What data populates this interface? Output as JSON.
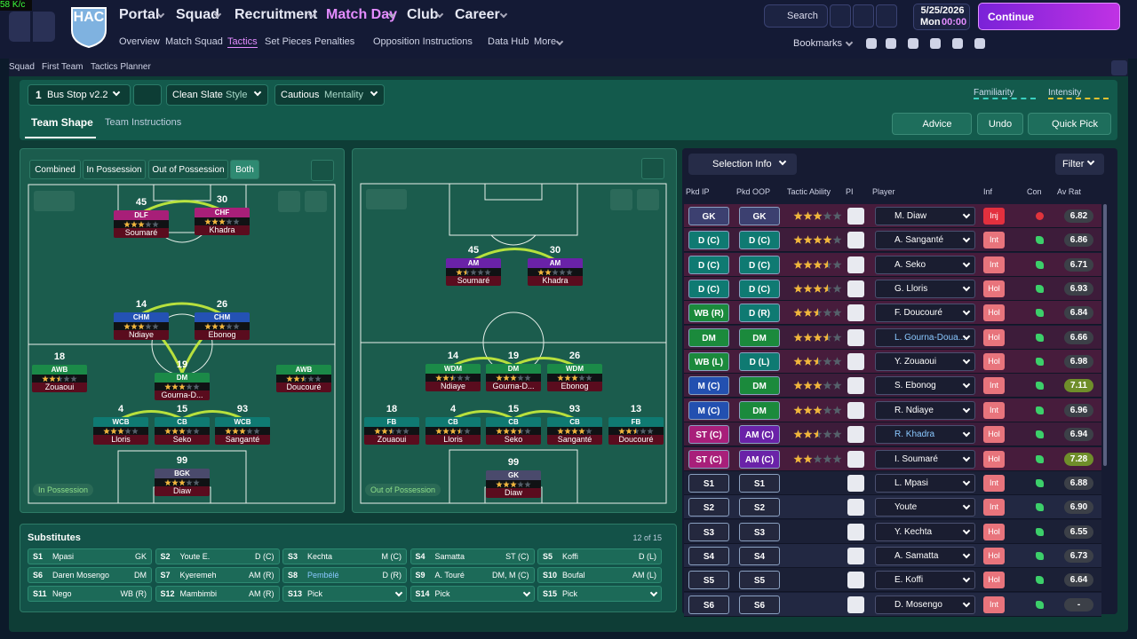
{
  "overlay": "58 K/c",
  "nav": {
    "crest": "HAC",
    "menus": [
      "Portal",
      "Squad",
      "Recruitment",
      "Match Day",
      "Club",
      "Career"
    ],
    "submenu": [
      "Overview",
      "Match Squad",
      "Tactics",
      "Set Pieces",
      "Penalties",
      "Opposition Instructions",
      "Data Hub",
      "More"
    ],
    "search": "Search",
    "date": "5/25/2026",
    "day": "Mon",
    "time": "00:00",
    "continue": "Continue",
    "bookmarks": "Bookmarks"
  },
  "breadcrumb": [
    "Squad",
    "First Team",
    "Tactics Planner"
  ],
  "tactic": {
    "slot": "1",
    "name": "Bus Stop v2.2",
    "style_value": "Clean Slate",
    "style_label": "Style",
    "mentality_value": "Cautious",
    "mentality_label": "Mentality",
    "familiarity": "Familiarity",
    "intensity": "Intensity"
  },
  "tabs": [
    "Team Shape",
    "Team Instructions"
  ],
  "actions": [
    "Advice",
    "Undo",
    "Quick Pick"
  ],
  "view_modes": [
    "Combined",
    "In Possession",
    "Out of Possession",
    "Both"
  ],
  "pitches": [
    {
      "label": "In Possession",
      "players": [
        {
          "number": 45,
          "role": "DLF",
          "name": "Soumaré",
          "rating": 3,
          "color": "#a81f78"
        },
        {
          "number": 30,
          "role": "CHF",
          "name": "Khadra",
          "rating": 3,
          "color": "#a81f78"
        },
        {
          "number": 14,
          "role": "CHM",
          "name": "Ndiaye",
          "rating": 3,
          "color": "#2452b4"
        },
        {
          "number": 26,
          "role": "CHM",
          "name": "Ebonog",
          "rating": 3,
          "color": "#2452b4"
        },
        {
          "number": 18,
          "role": "AWB",
          "name": "Zouaoui",
          "rating": 2.5,
          "color": "#1b8a48"
        },
        {
          "number": 19,
          "role": "DM",
          "name": "Gourna-D...",
          "rating": 3,
          "color": "#1b8a48"
        },
        {
          "role": "AWB",
          "name": "Doucouré",
          "rating": 2.5,
          "color": "#1b8a48"
        },
        {
          "number": 4,
          "role": "WCB",
          "name": "Lloris",
          "rating": 3,
          "color": "#0f7a72"
        },
        {
          "number": 15,
          "role": "CB",
          "name": "Seko",
          "rating": 3,
          "color": "#0f7a72"
        },
        {
          "number": 93,
          "role": "WCB",
          "name": "Sanganté",
          "rating": 3,
          "color": "#0f7a72"
        },
        {
          "number": 99,
          "role": "BGK",
          "name": "Diaw",
          "rating": 3,
          "color": "#4a4a6c"
        }
      ]
    },
    {
      "label": "Out of Possession",
      "players": [
        {
          "number": 45,
          "role": "AM",
          "name": "Soumaré",
          "rating": 1.5,
          "color": "#6a22a8"
        },
        {
          "number": 30,
          "role": "AM",
          "name": "Khadra",
          "rating": 2,
          "color": "#6a22a8"
        },
        {
          "number": 14,
          "role": "WDM",
          "name": "Ndiaye",
          "rating": 2.5,
          "color": "#1b8a48"
        },
        {
          "number": 19,
          "role": "DM",
          "name": "Gourna-D...",
          "rating": 3,
          "color": "#1b8a48"
        },
        {
          "number": 26,
          "role": "WDM",
          "name": "Ebonog",
          "rating": 3,
          "color": "#1b8a48"
        },
        {
          "number": 18,
          "role": "FB",
          "name": "Zouaoui",
          "rating": 2.5,
          "color": "#0f7a72"
        },
        {
          "number": 4,
          "role": "CB",
          "name": "Lloris",
          "rating": 3.5,
          "color": "#0f7a72"
        },
        {
          "number": 15,
          "role": "CB",
          "name": "Seko",
          "rating": 3.5,
          "color": "#0f7a72"
        },
        {
          "number": 93,
          "role": "CB",
          "name": "Sanganté",
          "rating": 4,
          "color": "#0f7a72"
        },
        {
          "number": 13,
          "role": "FB",
          "name": "Doucouré",
          "rating": 2.5,
          "color": "#0f7a72"
        },
        {
          "number": 99,
          "role": "GK",
          "name": "Diaw",
          "rating": 3,
          "color": "#4a4a6c"
        }
      ]
    }
  ],
  "substitutes": {
    "title": "Substitutes",
    "count": "12 of 15",
    "slots": [
      {
        "slot": "S1",
        "name": "Mpasi",
        "position": "GK"
      },
      {
        "slot": "S2",
        "name": "Youte E.",
        "position": "D (C)"
      },
      {
        "slot": "S3",
        "name": "Kechta",
        "position": "M (C)"
      },
      {
        "slot": "S4",
        "name": "Samatta",
        "position": "ST (C)"
      },
      {
        "slot": "S5",
        "name": "Koffi",
        "position": "D (L)"
      },
      {
        "slot": "S6",
        "name": "Daren Mosengo",
        "position": "DM"
      },
      {
        "slot": "S7",
        "name": "Kyeremeh",
        "position": "AM (R)"
      },
      {
        "slot": "S8",
        "name": "Pembélé",
        "position": "D (R)"
      },
      {
        "slot": "S9",
        "name": "A. Touré",
        "position": "DM, M (C)"
      },
      {
        "slot": "S10",
        "name": "Boufal",
        "position": "AM (L)"
      },
      {
        "slot": "S11",
        "name": "Nego",
        "position": "WB (R)"
      },
      {
        "slot": "S12",
        "name": "Mambimbi",
        "position": "AM (R)"
      },
      {
        "slot": "S13",
        "name": "Pick"
      },
      {
        "slot": "S14",
        "name": "Pick"
      },
      {
        "slot": "S15",
        "name": "Pick"
      }
    ]
  },
  "selection": {
    "menu": "Selection Info",
    "filter": "Filter",
    "headers": [
      "Pkd IP",
      "Pkd OOP",
      "Tactic Ability",
      "PI",
      "Player",
      "Inf",
      "Con",
      "Av Rat"
    ],
    "rows": [
      {
        "ip": "GK",
        "ip_color": "#3c4070",
        "oop": "GK",
        "oop_color": "#3c4070",
        "ability": 3,
        "player": "M. Diaw",
        "inf": "Inj",
        "inf_color": "#e3303e",
        "con_color": "#e0343c",
        "rating": "6.82"
      },
      {
        "ip": "D (C)",
        "ip_color": "#0f7a72",
        "oop": "D (C)",
        "oop_color": "#0f7a72",
        "ability": 4,
        "player": "A. Sanganté",
        "inf": "Int",
        "inf_color": "#e8747c",
        "con_color": "#3ccf6a",
        "rating": "6.86"
      },
      {
        "ip": "D (C)",
        "ip_color": "#0f7a72",
        "oop": "D (C)",
        "oop_color": "#0f7a72",
        "ability": 3.5,
        "player": "A. Seko",
        "inf": "Int",
        "inf_color": "#e8747c",
        "con_color": "#3ccf6a",
        "rating": "6.71"
      },
      {
        "ip": "D (C)",
        "ip_color": "#0f7a72",
        "oop": "D (C)",
        "oop_color": "#0f7a72",
        "ability": 3.5,
        "player": "G. Lloris",
        "inf": "Hol",
        "inf_color": "#e8747c",
        "con_color": "#3ccf6a",
        "rating": "6.93"
      },
      {
        "ip": "WB (R)",
        "ip_color": "#1b8a3c",
        "oop": "D (R)",
        "oop_color": "#0f7a72",
        "ability": 2.5,
        "player": "F. Doucouré",
        "inf": "Hol",
        "inf_color": "#e8747c",
        "con_color": "#3ccf6a",
        "rating": "6.84"
      },
      {
        "ip": "DM",
        "ip_color": "#1b8a3c",
        "oop": "DM",
        "oop_color": "#1b8a3c",
        "ability": 3.5,
        "player": "L. Gourna-Doua...",
        "inf": "Hol",
        "inf_color": "#e8747c",
        "con_color": "#3ccf6a",
        "rating": "6.66"
      },
      {
        "ip": "WB (L)",
        "ip_color": "#1b8a3c",
        "oop": "D (L)",
        "oop_color": "#0f7a72",
        "ability": 2.5,
        "player": "Y. Zouaoui",
        "inf": "Hol",
        "inf_color": "#e8747c",
        "con_color": "#3ccf6a",
        "rating": "6.98"
      },
      {
        "ip": "M (C)",
        "ip_color": "#2350b0",
        "oop": "DM",
        "oop_color": "#1b8a3c",
        "ability": 3,
        "player": "S. Ebonog",
        "inf": "Int",
        "inf_color": "#e8747c",
        "con_color": "#3ccf6a",
        "rating": "7.11",
        "rat_color": "#6f8e2a"
      },
      {
        "ip": "M (C)",
        "ip_color": "#2350b0",
        "oop": "DM",
        "oop_color": "#1b8a3c",
        "ability": 3,
        "player": "R. Ndiaye",
        "inf": "Int",
        "inf_color": "#e8747c",
        "con_color": "#3ccf6a",
        "rating": "6.96"
      },
      {
        "ip": "ST (C)",
        "ip_color": "#a81f7a",
        "oop": "AM (C)",
        "oop_color": "#6a22a8",
        "ability": 2.5,
        "player": "R. Khadra",
        "inf": "Hol",
        "inf_color": "#e8747c",
        "con_color": "#3ccf6a",
        "rating": "6.94"
      },
      {
        "ip": "ST (C)",
        "ip_color": "#a81f7a",
        "oop": "AM (C)",
        "oop_color": "#6a22a8",
        "ability": 2,
        "player": "I. Soumaré",
        "inf": "Hol",
        "inf_color": "#e8747c",
        "con_color": "#3ccf6a",
        "rating": "7.28",
        "rat_color": "#6f8e2a"
      },
      {
        "ip": "S1",
        "ip_color": "#24283e",
        "oop": "S1",
        "oop_color": "#24283e",
        "player": "L. Mpasi",
        "inf": "Int",
        "inf_color": "#e8747c",
        "con_color": "#3ccf6a",
        "rating": "6.88"
      },
      {
        "ip": "S2",
        "ip_color": "#24283e",
        "oop": "S2",
        "oop_color": "#24283e",
        "player": "Youte",
        "inf": "Int",
        "inf_color": "#e8747c",
        "con_color": "#3ccf6a",
        "rating": "6.90"
      },
      {
        "ip": "S3",
        "ip_color": "#24283e",
        "oop": "S3",
        "oop_color": "#24283e",
        "player": "Y. Kechta",
        "inf": "Hol",
        "inf_color": "#e8747c",
        "con_color": "#3ccf6a",
        "rating": "6.55"
      },
      {
        "ip": "S4",
        "ip_color": "#24283e",
        "oop": "S4",
        "oop_color": "#24283e",
        "player": "A. Samatta",
        "inf": "Hol",
        "inf_color": "#e8747c",
        "con_color": "#3ccf6a",
        "rating": "6.73"
      },
      {
        "ip": "S5",
        "ip_color": "#24283e",
        "oop": "S5",
        "oop_color": "#24283e",
        "player": "E. Koffi",
        "inf": "Hol",
        "inf_color": "#e8747c",
        "con_color": "#3ccf6a",
        "rating": "6.64"
      },
      {
        "ip": "S6",
        "ip_color": "#24283e",
        "oop": "S6",
        "oop_color": "#24283e",
        "player": "D. Mosengo",
        "inf": "Int",
        "inf_color": "#e8747c",
        "con_color": "#3ccf6a",
        "rating": "-"
      }
    ]
  }
}
